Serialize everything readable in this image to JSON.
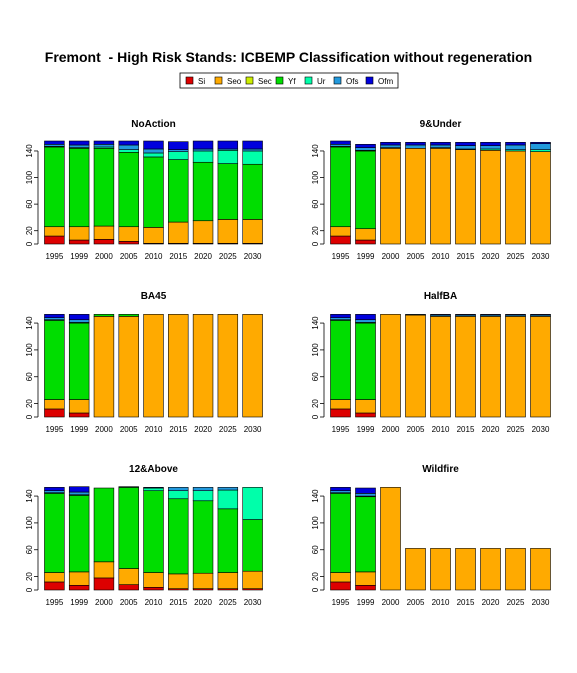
{
  "title": "Fremont  - High Risk Stands: ICBEMP Classification without regeneration",
  "legend": [
    {
      "label": "Si",
      "color": "#dd0000"
    },
    {
      "label": "Seo",
      "color": "#ffaa00"
    },
    {
      "label": "Sec",
      "color": "#ccee00"
    },
    {
      "label": "Yf",
      "color": "#00dd00"
    },
    {
      "label": "Ur",
      "color": "#00ffaa"
    },
    {
      "label": "Ofs",
      "color": "#2299dd"
    },
    {
      "label": "Ofm",
      "color": "#0000dd"
    }
  ],
  "chart_data": [
    {
      "type": "bar",
      "stacked": true,
      "title": "NoAction",
      "categories": [
        "1995",
        "1999",
        "2000",
        "2005",
        "2010",
        "2015",
        "2020",
        "2025",
        "2030"
      ],
      "yticks": [
        0,
        20,
        60,
        100,
        140
      ],
      "ylim": [
        0,
        155
      ],
      "series": [
        {
          "name": "Si",
          "values": [
            12,
            6,
            7,
            4,
            1,
            1,
            1,
            1,
            1
          ]
        },
        {
          "name": "Seo",
          "values": [
            14,
            20,
            20,
            22,
            24,
            32,
            34,
            36,
            36
          ]
        },
        {
          "name": "Sec",
          "values": [
            0,
            0,
            0,
            0,
            0,
            0,
            0,
            0,
            0
          ]
        },
        {
          "name": "Yf",
          "values": [
            120,
            118,
            117,
            112,
            106,
            94,
            88,
            84,
            83
          ]
        },
        {
          "name": "Ur",
          "values": [
            1,
            1,
            2,
            4,
            6,
            12,
            17,
            20,
            20
          ]
        },
        {
          "name": "Ofs",
          "values": [
            3,
            4,
            4,
            7,
            6,
            3,
            3,
            2,
            3
          ]
        },
        {
          "name": "Ofm",
          "values": [
            5,
            6,
            5,
            6,
            12,
            12,
            12,
            12,
            12
          ]
        }
      ]
    },
    {
      "type": "bar",
      "stacked": true,
      "title": "9&Under",
      "categories": [
        "1995",
        "1999",
        "2000",
        "2005",
        "2010",
        "2015",
        "2020",
        "2025",
        "2030"
      ],
      "yticks": [
        0,
        20,
        60,
        100,
        140
      ],
      "ylim": [
        0,
        155
      ],
      "series": [
        {
          "name": "Si",
          "values": [
            12,
            6,
            0,
            0,
            0,
            0,
            0,
            0,
            0
          ]
        },
        {
          "name": "Seo",
          "values": [
            14,
            17,
            144,
            144,
            144,
            142,
            141,
            140,
            139
          ]
        },
        {
          "name": "Sec",
          "values": [
            0,
            0,
            0,
            0,
            0,
            0,
            0,
            0,
            0
          ]
        },
        {
          "name": "Yf",
          "values": [
            120,
            117,
            1,
            0,
            0,
            0,
            0,
            0,
            0
          ]
        },
        {
          "name": "Ur",
          "values": [
            1,
            1,
            0,
            0,
            1,
            1,
            2,
            2,
            3
          ]
        },
        {
          "name": "Ofs",
          "values": [
            3,
            4,
            4,
            5,
            4,
            5,
            5,
            7,
            9
          ]
        },
        {
          "name": "Ofm",
          "values": [
            5,
            5,
            4,
            4,
            4,
            5,
            5,
            4,
            2
          ]
        }
      ]
    },
    {
      "type": "bar",
      "stacked": true,
      "title": "BA45",
      "categories": [
        "1995",
        "1999",
        "2000",
        "2005",
        "2010",
        "2015",
        "2020",
        "2025",
        "2030"
      ],
      "yticks": [
        0,
        20,
        60,
        100,
        140
      ],
      "ylim": [
        0,
        155
      ],
      "series": [
        {
          "name": "Si",
          "values": [
            12,
            6,
            0,
            0,
            0,
            0,
            0,
            0,
            0
          ]
        },
        {
          "name": "Seo",
          "values": [
            14,
            20,
            150,
            150,
            153,
            153,
            153,
            153,
            153
          ]
        },
        {
          "name": "Sec",
          "values": [
            0,
            0,
            0,
            0,
            0,
            0,
            0,
            0,
            0
          ]
        },
        {
          "name": "Yf",
          "values": [
            118,
            114,
            3,
            3,
            0,
            0,
            0,
            0,
            0
          ]
        },
        {
          "name": "Ur",
          "values": [
            1,
            1,
            0,
            0,
            0,
            0,
            0,
            0,
            0
          ]
        },
        {
          "name": "Ofs",
          "values": [
            3,
            4,
            0,
            0,
            0,
            0,
            0,
            0,
            0
          ]
        },
        {
          "name": "Ofm",
          "values": [
            5,
            8,
            0,
            0,
            0,
            0,
            0,
            0,
            0
          ]
        }
      ]
    },
    {
      "type": "bar",
      "stacked": true,
      "title": "HalfBA",
      "categories": [
        "1995",
        "1999",
        "2000",
        "2005",
        "2010",
        "2015",
        "2020",
        "2025",
        "2030"
      ],
      "yticks": [
        0,
        20,
        60,
        100,
        140
      ],
      "ylim": [
        0,
        155
      ],
      "series": [
        {
          "name": "Si",
          "values": [
            12,
            6,
            0,
            0,
            0,
            0,
            0,
            0,
            0
          ]
        },
        {
          "name": "Seo",
          "values": [
            14,
            20,
            153,
            152,
            150,
            150,
            150,
            150,
            150
          ]
        },
        {
          "name": "Sec",
          "values": [
            0,
            0,
            0,
            0,
            0,
            0,
            0,
            0,
            0
          ]
        },
        {
          "name": "Yf",
          "values": [
            118,
            114,
            0,
            0,
            0,
            0,
            0,
            0,
            0
          ]
        },
        {
          "name": "Ur",
          "values": [
            1,
            1,
            0,
            0,
            0,
            0,
            0,
            0,
            0
          ]
        },
        {
          "name": "Ofs",
          "values": [
            3,
            4,
            0,
            1,
            2,
            2,
            2,
            2,
            2
          ]
        },
        {
          "name": "Ofm",
          "values": [
            5,
            8,
            0,
            0,
            1,
            1,
            1,
            1,
            1
          ]
        }
      ]
    },
    {
      "type": "bar",
      "stacked": true,
      "title": "12&Above",
      "categories": [
        "1995",
        "1999",
        "2000",
        "2005",
        "2010",
        "2015",
        "2020",
        "2025",
        "2030"
      ],
      "yticks": [
        0,
        20,
        60,
        100,
        140
      ],
      "ylim": [
        0,
        155
      ],
      "series": [
        {
          "name": "Si",
          "values": [
            12,
            7,
            18,
            8,
            4,
            2,
            2,
            2,
            2
          ]
        },
        {
          "name": "Seo",
          "values": [
            14,
            20,
            24,
            24,
            22,
            22,
            23,
            24,
            26
          ]
        },
        {
          "name": "Sec",
          "values": [
            0,
            0,
            0,
            0,
            0,
            0,
            0,
            0,
            0
          ]
        },
        {
          "name": "Yf",
          "values": [
            118,
            114,
            110,
            121,
            122,
            112,
            108,
            95,
            77
          ]
        },
        {
          "name": "Ur",
          "values": [
            1,
            1,
            0,
            0,
            4,
            12,
            15,
            28,
            48
          ]
        },
        {
          "name": "Ofs",
          "values": [
            3,
            4,
            0,
            0,
            0,
            5,
            5,
            4,
            0
          ]
        },
        {
          "name": "Ofm",
          "values": [
            5,
            8,
            0,
            1,
            1,
            0,
            0,
            0,
            0
          ]
        }
      ]
    },
    {
      "type": "bar",
      "stacked": true,
      "title": "Wildfire",
      "categories": [
        "1995",
        "1999",
        "2000",
        "2005",
        "2010",
        "2015",
        "2020",
        "2025",
        "2030"
      ],
      "yticks": [
        0,
        20,
        60,
        100,
        140
      ],
      "ylim": [
        0,
        155
      ],
      "series": [
        {
          "name": "Si",
          "values": [
            12,
            7,
            0,
            0,
            0,
            0,
            0,
            0,
            0
          ]
        },
        {
          "name": "Seo",
          "values": [
            14,
            20,
            153,
            62,
            62,
            62,
            62,
            62,
            62
          ]
        },
        {
          "name": "Sec",
          "values": [
            0,
            0,
            0,
            0,
            0,
            0,
            0,
            0,
            0
          ]
        },
        {
          "name": "Yf",
          "values": [
            118,
            112,
            0,
            0,
            0,
            0,
            0,
            0,
            0
          ]
        },
        {
          "name": "Ur",
          "values": [
            1,
            1,
            0,
            0,
            0,
            0,
            0,
            0,
            0
          ]
        },
        {
          "name": "Ofs",
          "values": [
            3,
            4,
            0,
            0,
            0,
            0,
            0,
            0,
            0
          ]
        },
        {
          "name": "Ofm",
          "values": [
            5,
            8,
            0,
            0,
            0,
            0,
            0,
            0,
            0
          ]
        }
      ]
    }
  ]
}
